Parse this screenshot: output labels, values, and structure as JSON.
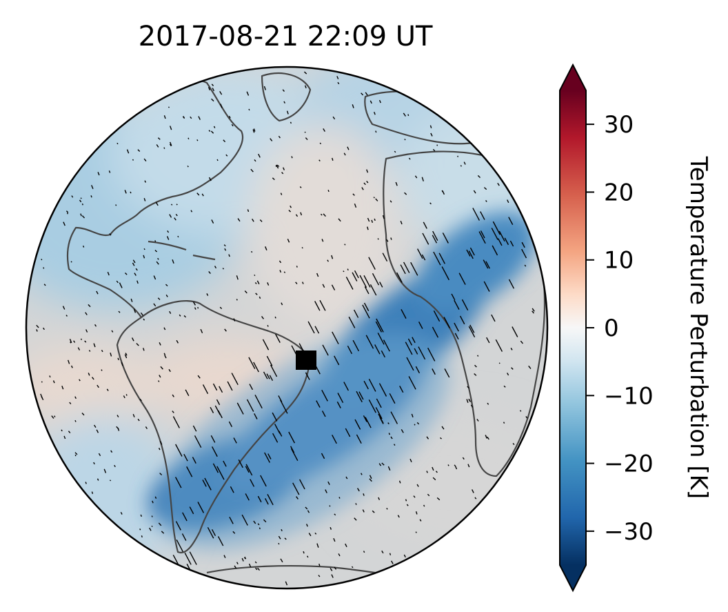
{
  "title": "2017-08-21  22:09 UT",
  "colorbar": {
    "label": "Temperature Perturbation [K]",
    "ticks": [
      30,
      20,
      10,
      0,
      -10,
      -20,
      -30
    ],
    "tick_labels": [
      "30",
      "20",
      "10",
      "0",
      "−10",
      "−20",
      "−30"
    ],
    "range": [
      -35,
      35
    ],
    "extend": "both",
    "colormap": [
      "#053061",
      "#2166ac",
      "#4393c3",
      "#92c5de",
      "#d1e5f0",
      "#f7f7f7",
      "#fddbc7",
      "#f4a582",
      "#d6604d",
      "#b2182b",
      "#67001f"
    ]
  },
  "map": {
    "projection": "orthographic",
    "marker": {
      "shape": "square",
      "color": "#000000"
    },
    "coastline_color": "#444444",
    "ocean_neutral_color": "#d4d4d4"
  }
}
